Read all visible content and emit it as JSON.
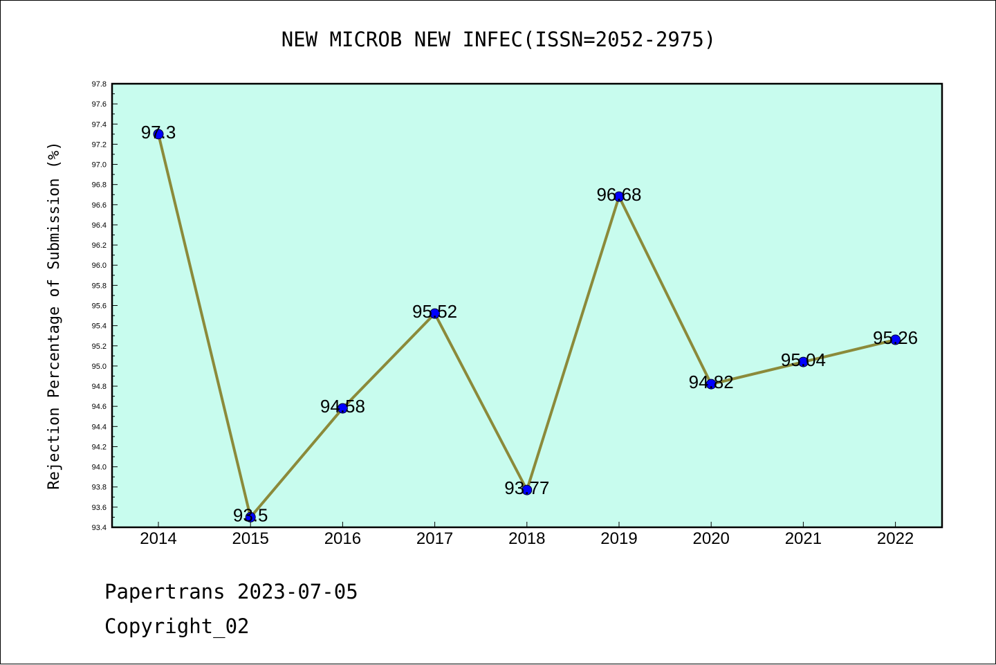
{
  "chart_data": {
    "type": "line",
    "title": "NEW MICROB NEW INFEC(ISSN=2052-2975)",
    "ylabel": "Rejection Percentage of Submission (%)",
    "xlabel": "",
    "categories": [
      "2014",
      "2015",
      "2016",
      "2017",
      "2018",
      "2019",
      "2020",
      "2021",
      "2022"
    ],
    "values": [
      97.3,
      93.5,
      94.58,
      95.52,
      93.77,
      96.68,
      94.82,
      95.04,
      95.26
    ],
    "data_labels": [
      "97.3",
      "93.5",
      "94.58",
      "95.52",
      "93.77",
      "96.68",
      "94.82",
      "95.04",
      "95.26"
    ],
    "ylim": [
      93.4,
      97.8
    ],
    "yticks": [
      "93.4",
      "93.6",
      "93.8",
      "94.0",
      "94.2",
      "94.4",
      "94.6",
      "94.8",
      "95.0",
      "95.2",
      "95.4",
      "95.6",
      "95.8",
      "96.0",
      "96.2",
      "96.4",
      "96.6",
      "96.8",
      "97.0",
      "97.2",
      "97.4",
      "97.6",
      "97.8"
    ],
    "grid": false,
    "colors": {
      "plot_background": "#c8fcee",
      "line": "#8b8a3a",
      "marker": "#0000ff"
    }
  },
  "footer": {
    "line1": "Papertrans 2023-07-05",
    "line2": "Copyright_02"
  }
}
